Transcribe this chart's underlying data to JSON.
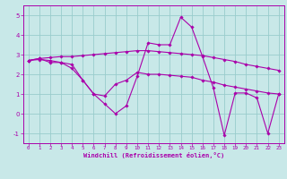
{
  "title": "",
  "xlabel": "Windchill (Refroidissement éolien,°C)",
  "ylabel": "",
  "xlim": [
    -0.5,
    23.5
  ],
  "ylim": [
    -1.5,
    5.5
  ],
  "xticks": [
    0,
    1,
    2,
    3,
    4,
    5,
    6,
    7,
    8,
    9,
    10,
    11,
    12,
    13,
    14,
    15,
    16,
    17,
    18,
    19,
    20,
    21,
    22,
    23
  ],
  "yticks": [
    -1,
    0,
    1,
    2,
    3,
    4,
    5
  ],
  "bg_color": "#c8e8e8",
  "line_color": "#aa00aa",
  "grid_color": "#99cccc",
  "lines": [
    {
      "x": [
        0,
        1,
        2,
        3,
        4,
        5,
        6,
        7,
        8,
        9,
        10,
        11,
        12,
        13,
        14,
        15,
        16,
        17,
        18,
        19,
        20,
        21,
        22,
        23
      ],
      "y": [
        2.7,
        2.8,
        2.85,
        2.9,
        2.9,
        2.95,
        3.0,
        3.05,
        3.1,
        3.15,
        3.2,
        3.2,
        3.15,
        3.1,
        3.05,
        3.0,
        2.95,
        2.85,
        2.75,
        2.65,
        2.5,
        2.4,
        2.3,
        2.2
      ]
    },
    {
      "x": [
        0,
        1,
        2,
        3,
        4,
        5,
        6,
        7,
        8,
        9,
        10,
        11,
        12,
        13,
        14,
        15,
        16,
        17,
        18,
        19,
        20,
        21,
        22,
        23
      ],
      "y": [
        2.7,
        2.8,
        2.6,
        2.6,
        2.3,
        1.7,
        1.0,
        0.5,
        0.0,
        0.4,
        1.9,
        3.6,
        3.5,
        3.5,
        4.9,
        4.4,
        2.9,
        1.3,
        -1.1,
        1.05,
        1.05,
        0.8,
        -1.0,
        1.0
      ]
    },
    {
      "x": [
        0,
        1,
        2,
        3,
        4,
        5,
        6,
        7,
        8,
        9,
        10,
        11,
        12,
        13,
        14,
        15,
        16,
        17,
        18,
        19,
        20,
        21,
        22,
        23
      ],
      "y": [
        2.7,
        2.75,
        2.7,
        2.6,
        2.5,
        1.7,
        1.0,
        0.9,
        1.5,
        1.7,
        2.1,
        2.0,
        2.0,
        1.95,
        1.9,
        1.85,
        1.7,
        1.6,
        1.45,
        1.35,
        1.25,
        1.15,
        1.05,
        1.0
      ]
    }
  ]
}
